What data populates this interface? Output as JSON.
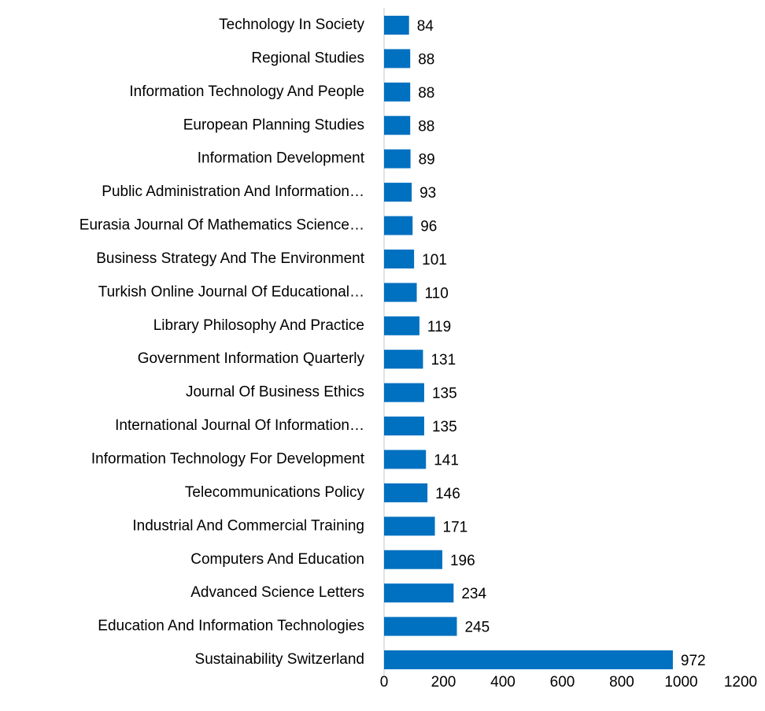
{
  "chart_data": {
    "type": "bar",
    "orientation": "horizontal",
    "color": "#0070c0",
    "categories": [
      "Technology In Society",
      "Regional Studies",
      "Information Technology And People",
      "European Planning Studies",
      "Information Development",
      "Public Administration And Information…",
      "Eurasia Journal Of Mathematics Science…",
      "Business Strategy And The Environment",
      "Turkish Online Journal Of Educational…",
      "Library Philosophy And Practice",
      "Government Information Quarterly",
      "Journal Of Business Ethics",
      "International Journal Of Information…",
      "Information Technology For Development",
      "Telecommunications Policy",
      "Industrial And Commercial Training",
      "Computers And Education",
      "Advanced Science Letters",
      "Education And Information Technologies",
      "Sustainability Switzerland"
    ],
    "values": [
      84,
      88,
      88,
      88,
      89,
      93,
      96,
      101,
      110,
      119,
      131,
      135,
      135,
      141,
      146,
      171,
      196,
      234,
      245,
      972
    ],
    "xlim": [
      0,
      1200
    ],
    "xticks": [
      0,
      200,
      400,
      600,
      800,
      1000,
      1200
    ],
    "grid": false
  }
}
